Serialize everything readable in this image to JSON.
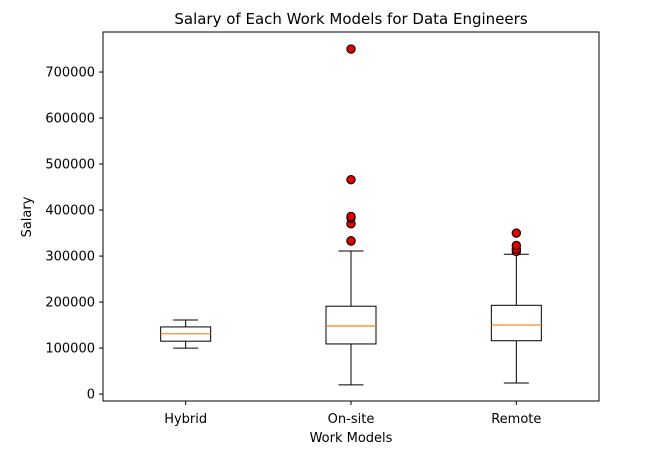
{
  "chart_data": {
    "type": "box",
    "title": "Salary of Each Work Models for Data Engineers",
    "xlabel": "Work Models",
    "ylabel": "Salary",
    "ylim": [
      -15000,
      787000
    ],
    "yticks": [
      0,
      100000,
      200000,
      300000,
      400000,
      500000,
      600000,
      700000
    ],
    "categories": [
      "Hybrid",
      "On-site",
      "Remote"
    ],
    "boxes": [
      {
        "category": "Hybrid",
        "whisker_low": 100000,
        "q1": 115000,
        "median": 131000,
        "q3": 146000,
        "whisker_high": 161000,
        "outliers": []
      },
      {
        "category": "On-site",
        "whisker_low": 20000,
        "q1": 109000,
        "median": 148000,
        "q3": 191000,
        "whisker_high": 311000,
        "outliers": [
          333000,
          333000,
          370000,
          383000,
          386000,
          466000,
          750000
        ]
      },
      {
        "category": "Remote",
        "whisker_low": 24000,
        "q1": 116000,
        "median": 150000,
        "q3": 193000,
        "whisker_high": 304000,
        "outliers": [
          310000,
          315000,
          323000,
          350000
        ]
      }
    ],
    "colors": {
      "box": "#000000",
      "median": "#ff7f0e",
      "outlier_fill": "#e00000",
      "outlier_edge": "#000000"
    },
    "grid": false,
    "legend": "none"
  }
}
